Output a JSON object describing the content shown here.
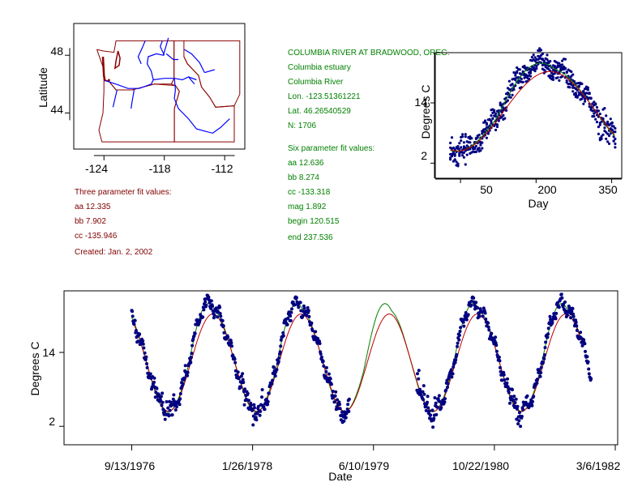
{
  "colors": {
    "map_border": "#8b0000",
    "river": "#0000ff",
    "data_points": "#000080",
    "fit_three": "#c00000",
    "fit_six": "#008000",
    "info_green": "#008000",
    "info_red": "#800000"
  },
  "site_info": {
    "title": "COLUMBIA RIVER AT BRADWOOD, OREG.",
    "area": "Columbia estuary",
    "river": "Columbia River",
    "lon": "Lon. -123.51361221",
    "lat": "Lat. 46.26540529",
    "n": "N: 1706"
  },
  "six_param": {
    "heading": "Six parameter fit values:",
    "aa": "aa 12.636",
    "bb": "bb 8.274",
    "cc": "cc -133.318",
    "mag": "mag 1.892",
    "begin": "begin 120.515",
    "end": "end 237.536"
  },
  "three_param": {
    "heading": "Three parameter fit values:",
    "aa": "aa 12.335",
    "bb": "bb 7.902",
    "cc": "cc -135.946",
    "created": "Created:   Jan. 2, 2002"
  },
  "chart_data": [
    {
      "type": "map",
      "title": "",
      "xlabel": "",
      "ylabel": "Latitude",
      "xlim": [
        -127,
        -110
      ],
      "ylim": [
        41.5,
        50.2
      ],
      "xticks": [
        "-124",
        "-118",
        "-112"
      ],
      "yticks": [
        "48",
        "44"
      ],
      "station": {
        "lon": -123.51,
        "lat": 46.27
      }
    },
    {
      "type": "scatter",
      "title": "",
      "xlabel": "Day",
      "ylabel": "Degrees C",
      "xlim": [
        0,
        370
      ],
      "ylim": [
        -1,
        24
      ],
      "xticks": [
        "50",
        "200",
        "350"
      ],
      "yticks": [
        "14",
        "2"
      ],
      "fit_three": {
        "aa": 12.335,
        "bb": 7.902,
        "cc": -135.946
      },
      "fit_six": {
        "aa": 12.636,
        "bb": 8.274,
        "cc": -133.318,
        "mag": 1.892,
        "begin": 120.515,
        "end": 237.536
      },
      "data_range_day": [
        30,
        357
      ]
    },
    {
      "type": "scatter",
      "title": "",
      "xlabel": "Date",
      "ylabel": "Degrees C",
      "ylim": [
        -1,
        24
      ],
      "xticks": [
        "9/13/1976",
        "1/26/1978",
        "6/10/1979",
        "10/22/1980",
        "3/6/1982"
      ],
      "yticks": [
        "14",
        "2"
      ],
      "tick_days": [
        0,
        500,
        1000,
        1500,
        2000
      ],
      "xlim_days": [
        -280,
        2010
      ],
      "data_segments_days": [
        [
          0,
          900
        ],
        [
          1180,
          1900
        ]
      ],
      "fit_start_day": 0,
      "fit_end_day": 1860,
      "start_doy": 257
    }
  ]
}
